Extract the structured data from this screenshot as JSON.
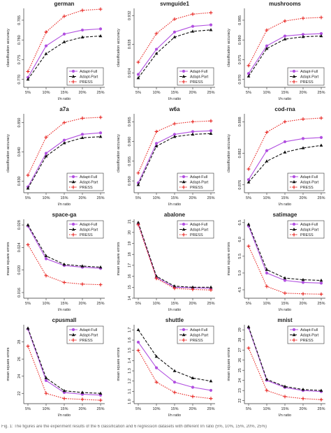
{
  "caption": "Fig. 1: The figures are the experiment results of the 6 classification and 6 regression datasets with different l/n ratio (5%, 10%, 15%, 20%, 25%)",
  "colors": {
    "adapt_full": "#b14fe0",
    "adapt_part": "#111111",
    "press": "#e8231f"
  },
  "chart_data": [
    {
      "type": "line",
      "title": "german",
      "xlabel": "l/n ratio",
      "ylabel": "classification accuracy",
      "categories": [
        "5%",
        "10%",
        "15%",
        "20%",
        "25%"
      ],
      "ylim": [
        0.768,
        0.788
      ],
      "yticks": [
        "0.770",
        "0.775",
        "0.780",
        "0.785"
      ],
      "ytick_values": [
        0.77,
        0.775,
        0.78,
        0.785
      ],
      "legend": "bottom-right",
      "series": [
        {
          "name": "Adapt-Full",
          "values": [
            0.7705,
            0.7785,
            0.7815,
            0.7825,
            0.7828
          ]
        },
        {
          "name": "Adapt-Part",
          "values": [
            0.77,
            0.7765,
            0.7795,
            0.7807,
            0.781
          ]
        },
        {
          "name": "PRESS",
          "values": [
            0.772,
            0.782,
            0.786,
            0.7875,
            0.7878
          ]
        }
      ]
    },
    {
      "type": "line",
      "title": "svmguide1",
      "xlabel": "l/n ratio",
      "ylabel": "classification accuracy",
      "categories": [
        "5%",
        "10%",
        "15%",
        "20%",
        "25%"
      ],
      "ylim": [
        0.922,
        0.933
      ],
      "yticks": [
        "0.924",
        "0.928",
        "0.932"
      ],
      "ytick_values": [
        0.924,
        0.928,
        0.932
      ],
      "legend": "bottom-right",
      "series": [
        {
          "name": "Adapt-Full",
          "values": [
            0.9238,
            0.9273,
            0.9297,
            0.9305,
            0.9307
          ]
        },
        {
          "name": "Adapt-Part",
          "values": [
            0.9233,
            0.9267,
            0.929,
            0.9298,
            0.93
          ]
        },
        {
          "name": "PRESS",
          "values": [
            0.9255,
            0.9295,
            0.9315,
            0.9322,
            0.9324
          ]
        }
      ]
    },
    {
      "type": "line",
      "title": "mushrooms",
      "xlabel": "l/n ratio",
      "ylabel": "classification accuracy",
      "categories": [
        "5%",
        "10%",
        "15%",
        "20%",
        "25%"
      ],
      "ylim": [
        0.968,
        0.988
      ],
      "yticks": [
        "0.970",
        "0.975",
        "0.980",
        "0.985"
      ],
      "ytick_values": [
        0.97,
        0.975,
        0.98,
        0.985
      ],
      "legend": "bottom-right",
      "series": [
        {
          "name": "Adapt-Full",
          "values": [
            0.9715,
            0.9785,
            0.981,
            0.9814,
            0.9816
          ]
        },
        {
          "name": "Adapt-Part",
          "values": [
            0.9708,
            0.9778,
            0.9802,
            0.9808,
            0.981
          ]
        },
        {
          "name": "PRESS",
          "values": [
            0.9735,
            0.9825,
            0.9848,
            0.9855,
            0.9857
          ]
        }
      ]
    },
    {
      "type": "line",
      "title": "a7a",
      "xlabel": "l/n ratio",
      "ylabel": "classification accuracy",
      "categories": [
        "5%",
        "10%",
        "15%",
        "20%",
        "25%"
      ],
      "ylim": [
        0.826,
        0.853
      ],
      "yticks": [
        "0.830",
        "0.840",
        "0.850"
      ],
      "ytick_values": [
        0.83,
        0.84,
        0.85
      ],
      "legend": "bottom-right",
      "series": [
        {
          "name": "Adapt-Full",
          "values": [
            0.828,
            0.8395,
            0.844,
            0.846,
            0.8465
          ]
        },
        {
          "name": "Adapt-Part",
          "values": [
            0.8275,
            0.8385,
            0.843,
            0.8448,
            0.8452
          ]
        },
        {
          "name": "PRESS",
          "values": [
            0.832,
            0.845,
            0.85,
            0.8515,
            0.8518
          ]
        }
      ]
    },
    {
      "type": "line",
      "title": "w6a",
      "xlabel": "l/n ratio",
      "ylabel": "classification accuracy",
      "categories": [
        "5%",
        "10%",
        "15%",
        "20%",
        "25%"
      ],
      "ylim": [
        0.947,
        0.967
      ],
      "yticks": [
        "0.950",
        "0.955",
        "0.960",
        "0.965"
      ],
      "ytick_values": [
        0.95,
        0.955,
        0.96,
        0.965
      ],
      "legend": "bottom-right",
      "series": [
        {
          "name": "Adapt-Full",
          "values": [
            0.9495,
            0.9595,
            0.9618,
            0.9625,
            0.9627
          ]
        },
        {
          "name": "Adapt-Part",
          "values": [
            0.949,
            0.9588,
            0.9612,
            0.9618,
            0.962
          ]
        },
        {
          "name": "PRESS",
          "values": [
            0.952,
            0.9625,
            0.9645,
            0.965,
            0.9652
          ]
        }
      ]
    },
    {
      "type": "line",
      "title": "cod-rna",
      "xlabel": "l/n ratio",
      "ylabel": "classification accuracy",
      "categories": [
        "5%",
        "10%",
        "15%",
        "20%",
        "25%"
      ],
      "ylim": [
        0.8745,
        0.8895
      ],
      "yticks": [
        "0.876",
        "0.882",
        "0.888"
      ],
      "ytick_values": [
        0.876,
        0.882,
        0.888
      ],
      "legend": "bottom-right",
      "series": [
        {
          "name": "Adapt-Full",
          "values": [
            0.877,
            0.8825,
            0.8842,
            0.8848,
            0.885
          ]
        },
        {
          "name": "Adapt-Part",
          "values": [
            0.8765,
            0.8805,
            0.8822,
            0.883,
            0.8835
          ]
        },
        {
          "name": "PRESS",
          "values": [
            0.879,
            0.886,
            0.888,
            0.8885,
            0.8887
          ]
        }
      ]
    },
    {
      "type": "line",
      "title": "space-ga",
      "xlabel": "l/n ratio",
      "ylabel": "mean square errors",
      "categories": [
        "5%",
        "10%",
        "15%",
        "20%",
        "25%"
      ],
      "ylim": [
        0.015,
        0.029
      ],
      "yticks": [
        "0.016",
        "0.020",
        "0.024",
        "0.028"
      ],
      "ytick_values": [
        0.016,
        0.02,
        0.024,
        0.028
      ],
      "legend": "top-right",
      "series": [
        {
          "name": "Adapt-Full",
          "values": [
            0.0278,
            0.022,
            0.0208,
            0.0205,
            0.0203
          ]
        },
        {
          "name": "Adapt-Part",
          "values": [
            0.028,
            0.0225,
            0.021,
            0.0207,
            0.0205
          ]
        },
        {
          "name": "PRESS",
          "values": [
            0.0245,
            0.019,
            0.0178,
            0.0175,
            0.0174
          ]
        }
      ]
    },
    {
      "type": "line",
      "title": "abalone",
      "xlabel": "l/n ratio",
      "ylabel": "mean square errors",
      "categories": [
        "5%",
        "10%",
        "15%",
        "20%",
        "25%"
      ],
      "ylim": [
        14.0,
        21.2
      ],
      "yticks": [
        "14",
        "15",
        "16",
        "17",
        "18",
        "19",
        "20",
        "21"
      ],
      "ytick_values": [
        14,
        15,
        16,
        17,
        18,
        19,
        20,
        21
      ],
      "legend": "top-right",
      "series": [
        {
          "name": "Adapt-Full",
          "values": [
            20.8,
            15.9,
            15.0,
            14.95,
            14.9
          ]
        },
        {
          "name": "Adapt-Part",
          "values": [
            20.9,
            16.0,
            15.1,
            15.0,
            15.0
          ]
        },
        {
          "name": "PRESS",
          "values": [
            20.7,
            15.8,
            14.9,
            14.8,
            14.75
          ]
        }
      ]
    },
    {
      "type": "line",
      "title": "satimage",
      "xlabel": "l/n ratio",
      "ylabel": "mean square errors",
      "categories": [
        "5%",
        "10%",
        "15%",
        "20%",
        "25%"
      ],
      "ylim": [
        4.25,
        6.6
      ],
      "yticks": [
        "4.5",
        "5.0",
        "5.5",
        "6.0",
        "6.5"
      ],
      "ytick_values": [
        4.5,
        5.0,
        5.5,
        6.0,
        6.5
      ],
      "legend": "top-right",
      "series": [
        {
          "name": "Adapt-Full",
          "values": [
            6.4,
            5.0,
            4.78,
            4.72,
            4.7
          ]
        },
        {
          "name": "Adapt-Part",
          "values": [
            6.45,
            5.1,
            4.85,
            4.8,
            4.78
          ]
        },
        {
          "name": "PRESS",
          "values": [
            5.8,
            4.6,
            4.4,
            4.38,
            4.37
          ]
        }
      ]
    },
    {
      "type": "line",
      "title": "cpusmall",
      "xlabel": "l/n ratio",
      "ylabel": "mean square errors",
      "categories": [
        "5%",
        "10%",
        "15%",
        "20%",
        "25%"
      ],
      "ylim": [
        20.8,
        30.0
      ],
      "yticks": [
        "22",
        "24",
        "26",
        "28"
      ],
      "ytick_values": [
        22,
        24,
        26,
        28
      ],
      "legend": "top-right",
      "series": [
        {
          "name": "Adapt-Full",
          "values": [
            29.5,
            23.5,
            22.1,
            21.9,
            21.8
          ]
        },
        {
          "name": "Adapt-Part",
          "values": [
            29.6,
            23.8,
            22.3,
            22.1,
            22.0
          ]
        },
        {
          "name": "PRESS",
          "values": [
            27.5,
            22.0,
            21.4,
            21.3,
            21.2
          ]
        }
      ]
    },
    {
      "type": "line",
      "title": "shuttle",
      "xlabel": "l/n ratio",
      "ylabel": "mean square errors",
      "categories": [
        "5%",
        "10%",
        "15%",
        "20%",
        "25%"
      ],
      "ylim": [
        0.98,
        1.75
      ],
      "yticks": [
        "1.0",
        "1.1",
        "1.2",
        "1.3",
        "1.4",
        "1.5",
        "1.6",
        "1.7"
      ],
      "ytick_values": [
        1.0,
        1.1,
        1.2,
        1.3,
        1.4,
        1.5,
        1.6,
        1.7
      ],
      "legend": "top-right",
      "series": [
        {
          "name": "Adapt-Full",
          "values": [
            1.58,
            1.33,
            1.19,
            1.14,
            1.11
          ]
        },
        {
          "name": "Adapt-Part",
          "values": [
            1.7,
            1.44,
            1.3,
            1.23,
            1.2
          ]
        },
        {
          "name": "PRESS",
          "values": [
            1.5,
            1.19,
            1.09,
            1.05,
            1.03
          ]
        }
      ]
    },
    {
      "type": "line",
      "title": "mnist",
      "xlabel": "l/n ratio",
      "ylabel": "mean square errors",
      "categories": [
        "5%",
        "10%",
        "15%",
        "20%",
        "25%"
      ],
      "ylim": [
        21.7,
        29.5
      ],
      "yticks": [
        "22",
        "23",
        "24",
        "25",
        "26",
        "27",
        "28",
        "29"
      ],
      "ytick_values": [
        22,
        23,
        24,
        25,
        26,
        27,
        28,
        29
      ],
      "legend": "top-right",
      "series": [
        {
          "name": "Adapt-Full",
          "values": [
            29.2,
            24.0,
            23.3,
            23.0,
            22.9
          ]
        },
        {
          "name": "Adapt-Part",
          "values": [
            29.3,
            24.1,
            23.4,
            23.1,
            23.0
          ]
        },
        {
          "name": "PRESS",
          "values": [
            27.2,
            23.0,
            22.4,
            22.2,
            22.1
          ]
        }
      ]
    }
  ]
}
